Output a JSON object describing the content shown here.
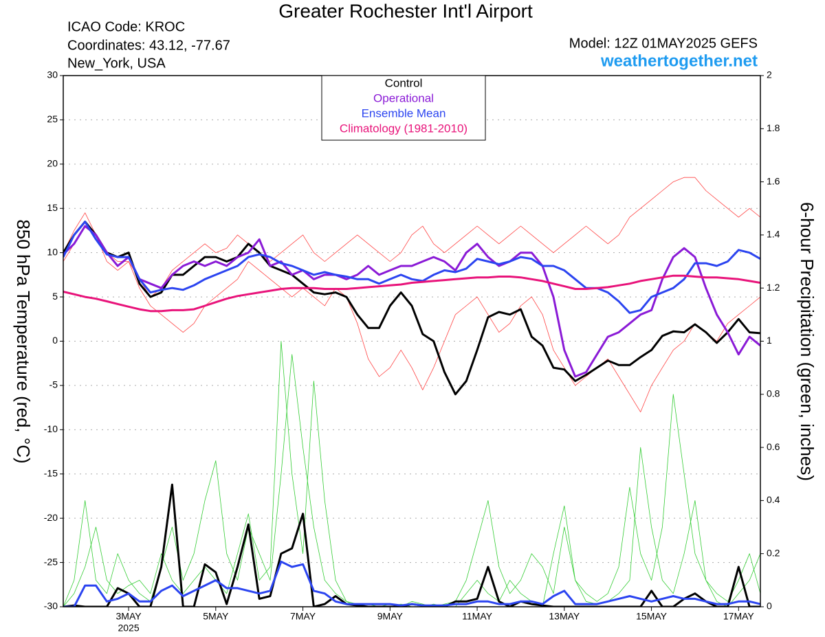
{
  "chart_data": {
    "type": "line",
    "title": "Greater Rochester Int'l Airport",
    "info_lines": [
      "ICAO Code: KROC",
      "Coordinates: 43.12, -77.67",
      "New_York, USA"
    ],
    "model": "Model: 12Z 01MAY2025 GEFS",
    "site": "weathertogether.net",
    "ylabel": "850 hPa Temperature (red, °C)",
    "y2label": "6-hour Precipitation (green, inches)",
    "x_sublabel": "2025",
    "grid": true,
    "legend": "top-center",
    "xlim": [
      1.5,
      17.5
    ],
    "ylim": [
      -30,
      30
    ],
    "y2lim": [
      0,
      2
    ],
    "xticks": [
      {
        "value": 3,
        "label": "3MAY"
      },
      {
        "value": 5,
        "label": "5MAY"
      },
      {
        "value": 7,
        "label": "7MAY"
      },
      {
        "value": 9,
        "label": "9MAY"
      },
      {
        "value": 11,
        "label": "11MAY"
      },
      {
        "value": 13,
        "label": "13MAY"
      },
      {
        "value": 15,
        "label": "15MAY"
      },
      {
        "value": 17,
        "label": "17MAY"
      }
    ],
    "yticks": [
      -30,
      -25,
      -20,
      -15,
      -10,
      -5,
      0,
      5,
      10,
      15,
      20,
      25,
      30
    ],
    "y2ticks": [
      0,
      0.2,
      0.4,
      0.6,
      0.8,
      1,
      1.2,
      1.4,
      1.6,
      1.8,
      2
    ],
    "x": [
      1.5,
      1.75,
      2,
      2.25,
      2.5,
      2.75,
      3,
      3.25,
      3.5,
      3.75,
      4,
      4.25,
      4.5,
      4.75,
      5,
      5.25,
      5.5,
      5.75,
      6,
      6.25,
      6.5,
      6.75,
      7,
      7.25,
      7.5,
      7.75,
      8,
      8.25,
      8.5,
      8.75,
      9,
      9.25,
      9.5,
      9.75,
      10,
      10.25,
      10.5,
      10.75,
      11,
      11.25,
      11.5,
      11.75,
      12,
      12.25,
      12.5,
      12.75,
      13,
      13.25,
      13.5,
      13.75,
      14,
      14.25,
      14.5,
      14.75,
      15,
      15.25,
      15.5,
      15.75,
      16,
      16.25,
      16.5,
      16.75,
      17,
      17.25,
      17.5
    ],
    "series": [
      {
        "color": "#33cc33",
        "axis": "y2",
        "values": [
          0,
          0.1,
          0.4,
          0.1,
          0.05,
          0.2,
          0.1,
          0.05,
          0.02,
          0.15,
          0.3,
          0.1,
          0.2,
          0.4,
          0.55,
          0.2,
          0.1,
          0.3,
          0.2,
          0.1,
          0.5,
          0.95,
          0.6,
          0.3,
          0.1,
          0.05,
          0.02,
          0.01,
          0,
          0,
          0.01,
          0,
          0.02,
          0.01,
          0,
          0.01,
          0.02,
          0.1,
          0.25,
          0.4,
          0.15,
          0.05,
          0.1,
          0.2,
          0.15,
          0.05,
          0.3,
          0.1,
          0.05,
          0.02,
          0.05,
          0.15,
          0.45,
          0.2,
          0.1,
          0.3,
          0.8,
          0.5,
          0.2,
          0.1,
          0.05,
          0.02,
          0.1,
          0.2,
          0.05
        ]
      },
      {
        "color": "#33cc33",
        "axis": "y2",
        "values": [
          0,
          0.05,
          0.15,
          0.3,
          0.1,
          0.05,
          0.08,
          0.1,
          0.05,
          0.2,
          0.1,
          0.05,
          0.1,
          0.15,
          0.1,
          0.05,
          0.2,
          0.35,
          0.1,
          0.15,
          1.0,
          0.5,
          0.2,
          0.85,
          0.4,
          0.1,
          0.02,
          0,
          0.01,
          0,
          0,
          0.01,
          0,
          0,
          0.01,
          0,
          0,
          0.05,
          0.1,
          0.05,
          0.02,
          0.1,
          0.05,
          0.02,
          0,
          0.2,
          0.38,
          0.1,
          0.02,
          0.01,
          0.02,
          0.05,
          0.1,
          0.6,
          0.3,
          0.1,
          0.05,
          0.2,
          0.4,
          0.1,
          0.02,
          0,
          0.05,
          0.1,
          0.2
        ]
      },
      {
        "color": "#ff4040",
        "values": [
          10,
          12.5,
          14.5,
          12,
          10,
          9,
          9,
          7,
          5,
          6,
          8,
          9,
          10,
          11,
          10,
          10.5,
          12,
          11,
          10,
          9,
          10,
          11,
          12,
          10,
          9,
          10,
          11,
          12,
          11,
          10,
          9,
          10,
          12,
          13,
          11,
          10,
          11,
          12,
          13,
          12,
          11,
          12,
          13,
          12,
          11,
          10,
          11,
          12,
          13,
          12,
          11,
          12,
          14,
          15,
          16,
          17,
          18,
          18.5,
          18.5,
          17,
          16,
          15,
          14,
          15,
          14
        ]
      },
      {
        "color": "#ff4040",
        "values": [
          9,
          11,
          13,
          12,
          9,
          8,
          9,
          6,
          4,
          3,
          2,
          1,
          2,
          4,
          5,
          6,
          7,
          9,
          8,
          7,
          6,
          5,
          6,
          5,
          4,
          6,
          5,
          2,
          -2,
          -4,
          -3,
          -1,
          -3,
          -5.5,
          -3,
          0,
          3,
          4,
          5,
          3,
          1,
          2,
          4,
          5,
          3,
          -1,
          -3,
          -5,
          -4,
          -3,
          -2,
          -4,
          -6,
          -8,
          -5,
          -3,
          -1,
          0,
          2,
          1,
          0,
          2,
          3,
          4,
          5
        ]
      },
      {
        "color": "#000000",
        "axis": "y2",
        "values": [
          0,
          0.005,
          0,
          0,
          0,
          0.07,
          0.05,
          0,
          0,
          0.15,
          0.46,
          0,
          0,
          0.16,
          0.13,
          0.01,
          0.15,
          0.31,
          0.03,
          0.04,
          0.2,
          0.22,
          0.35,
          0,
          0.01,
          0.04,
          0.01,
          0.005,
          0,
          0,
          0,
          0,
          0.01,
          0.005,
          0,
          0,
          0.02,
          0.02,
          0.03,
          0.15,
          0.02,
          0,
          0.02,
          0.01,
          0.005,
          0,
          0,
          0,
          0,
          0,
          0,
          0,
          0,
          0,
          0.06,
          0,
          0,
          0.03,
          0.05,
          0.02,
          0,
          0,
          0.15,
          0,
          0
        ]
      },
      {
        "color": "#2b44f0",
        "axis": "y2",
        "values": [
          0,
          0,
          0.08,
          0.08,
          0.02,
          0.03,
          0.05,
          0.02,
          0.02,
          0.06,
          0.08,
          0.04,
          0.06,
          0.08,
          0.1,
          0.07,
          0.07,
          0.06,
          0.05,
          0.06,
          0.17,
          0.15,
          0.16,
          0.06,
          0.05,
          0.02,
          0.01,
          0.01,
          0.01,
          0.01,
          0.01,
          0.005,
          0.01,
          0.005,
          0.005,
          0.005,
          0.01,
          0.01,
          0.02,
          0.02,
          0.01,
          0.01,
          0.02,
          0.02,
          0.01,
          0.04,
          0.06,
          0.01,
          0.01,
          0.01,
          0.02,
          0.03,
          0.04,
          0.03,
          0.02,
          0.03,
          0.04,
          0.03,
          0.03,
          0.02,
          0.01,
          0.01,
          0.02,
          0.02,
          0.01
        ]
      },
      {
        "name": "Control",
        "color": "#000000",
        "values": [
          10,
          12,
          13.5,
          12,
          10,
          9.5,
          10,
          6.5,
          5,
          5.5,
          7.5,
          7.5,
          8.5,
          9.5,
          9.5,
          9,
          9.5,
          11,
          10,
          8.5,
          8,
          7.5,
          6.5,
          5.5,
          5.3,
          5.5,
          5,
          3,
          1.5,
          1.5,
          4,
          5.5,
          4,
          0.8,
          0,
          -3.5,
          -6,
          -4.5,
          -1,
          2.7,
          3.3,
          3,
          3.6,
          0.5,
          -0.5,
          -3,
          -3.2,
          -4.5,
          -3.8,
          -3,
          -2.2,
          -2.7,
          -2.7,
          -1.8,
          -1,
          0.6,
          1.1,
          1,
          1.9,
          1,
          -0.2,
          1,
          2.5,
          1,
          0.9
        ]
      },
      {
        "name": "Operational",
        "color": "#8a1ad6",
        "values": [
          9.8,
          11,
          13,
          12,
          10,
          8.5,
          9.5,
          7,
          6.5,
          6,
          7.5,
          8.5,
          9,
          8.5,
          9,
          8.5,
          9.5,
          10,
          11.5,
          8.5,
          9,
          7.5,
          8,
          7,
          7.5,
          7.5,
          7,
          7.5,
          8.5,
          7.5,
          8,
          8.5,
          8.5,
          9,
          9.5,
          9,
          8,
          10,
          11,
          9.5,
          8.5,
          9,
          10,
          10,
          8.5,
          5,
          -1,
          -4,
          -3.5,
          -1.5,
          0.5,
          1,
          2,
          3,
          3.5,
          7,
          9.5,
          10.5,
          9.5,
          6,
          3,
          1,
          -1.5,
          0.5,
          -0.5
        ]
      },
      {
        "name": "Ensemble Mean",
        "color": "#2b44f0",
        "values": [
          9.5,
          12,
          13.5,
          11.5,
          9.8,
          9.5,
          9.5,
          7,
          5.5,
          5.8,
          6,
          5.8,
          6.3,
          7,
          7.5,
          8,
          8.5,
          9.5,
          9.8,
          9.5,
          8.8,
          8.5,
          8,
          7.5,
          7.8,
          7.5,
          7.3,
          7,
          7,
          6.5,
          7,
          7.5,
          7,
          6.8,
          7.5,
          8,
          7.8,
          8.2,
          9.3,
          9,
          8.7,
          9,
          9.5,
          9.3,
          8.5,
          8.5,
          8,
          7,
          6,
          6,
          5.5,
          4.5,
          3.2,
          3.5,
          5,
          5.5,
          6,
          7,
          8.8,
          8.8,
          8.5,
          9,
          10.3,
          10,
          9.3
        ]
      },
      {
        "name": "Climatology (1981-2010)",
        "color": "#e8137a",
        "values": [
          5.6,
          5.3,
          5,
          4.8,
          4.5,
          4.2,
          3.9,
          3.6,
          3.4,
          3.4,
          3.5,
          3.5,
          3.6,
          4,
          4.4,
          4.8,
          5.1,
          5.3,
          5.5,
          5.7,
          5.9,
          6,
          6,
          6,
          5.9,
          5.9,
          5.9,
          6,
          6.1,
          6.2,
          6.3,
          6.4,
          6.6,
          6.7,
          6.8,
          6.9,
          7,
          7.1,
          7.2,
          7.2,
          7.3,
          7.3,
          7.2,
          7,
          6.8,
          6.5,
          6.2,
          5.9,
          5.9,
          6,
          6.1,
          6.3,
          6.5,
          6.8,
          7,
          7.2,
          7.4,
          7.4,
          7.3,
          7.2,
          7.2,
          7.1,
          7,
          6.8,
          6.6
        ]
      }
    ]
  }
}
